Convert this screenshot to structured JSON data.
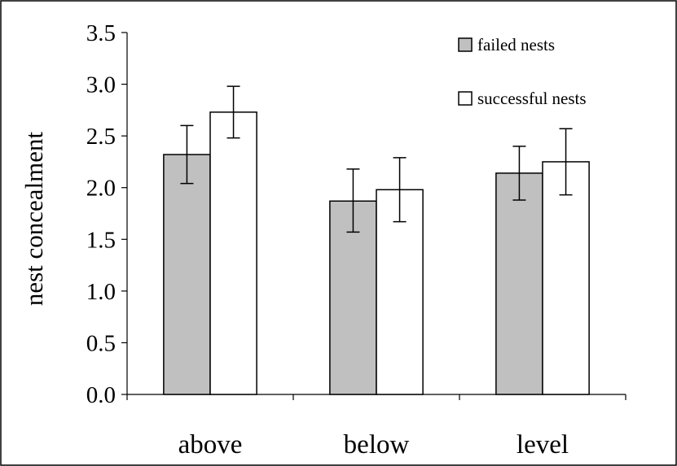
{
  "chart_data": {
    "type": "bar",
    "title": "",
    "xlabel": "",
    "ylabel": "nest concealment",
    "categories": [
      "above",
      "below",
      "level"
    ],
    "series": [
      {
        "name": "failed nests",
        "color": "#c0c0c0",
        "values": [
          2.32,
          1.87,
          2.14
        ],
        "error_low": [
          2.04,
          1.57,
          1.88
        ],
        "error_high": [
          2.6,
          2.18,
          2.4
        ]
      },
      {
        "name": "successful nests",
        "color": "#ffffff",
        "values": [
          2.73,
          1.98,
          2.25
        ],
        "error_low": [
          2.48,
          1.67,
          1.93
        ],
        "error_high": [
          2.98,
          2.29,
          2.57
        ]
      }
    ],
    "ylim": [
      0,
      3.5
    ],
    "yticks": [
      "0.0",
      "0.5",
      "1.0",
      "1.5",
      "2.0",
      "2.5",
      "3.0",
      "3.5"
    ],
    "grid": false,
    "legend_position": "top-right"
  }
}
